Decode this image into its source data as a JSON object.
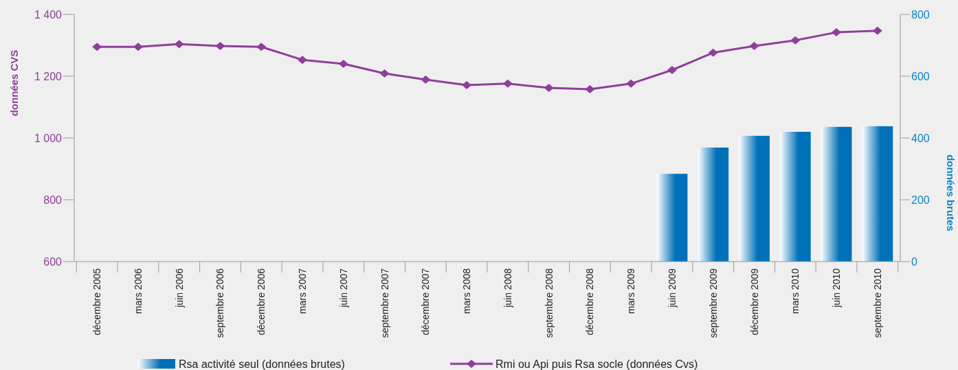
{
  "chart_data": {
    "type": "bar",
    "ylabel": "données CVS",
    "y2label": "données brutes",
    "categories": [
      "décembre 2005",
      "mars 2006",
      "juin 2006",
      "septembre 2006",
      "décembre 2006",
      "mars 2007",
      "juin 2007",
      "septembre 2007",
      "décembre 2007",
      "mars 2008",
      "juin 2008",
      "septembre 2008",
      "décembre 2008",
      "mars 2009",
      "juin 2009",
      "septembre 2009",
      "décembre 2009",
      "mars 2010",
      "juin 2010",
      "septembre 2010"
    ],
    "series": [
      {
        "name": "Rsa activité seul (données brutes)",
        "axis": "y2",
        "color": "#0070b8",
        "values": [
          null,
          null,
          null,
          null,
          null,
          null,
          null,
          null,
          null,
          null,
          null,
          null,
          null,
          null,
          284,
          369,
          407,
          420,
          436,
          438
        ]
      },
      {
        "name": "Rmi ou Api puis Rsa socle (données Cvs)",
        "type": "line",
        "axis": "y",
        "color": "#8e3f9a",
        "marker": "diamond",
        "values": [
          1295,
          1295,
          1304,
          1298,
          1295,
          1253,
          1240,
          1209,
          1189,
          1171,
          1176,
          1162,
          1158,
          1176,
          1220,
          1276,
          1298,
          1316,
          1342,
          1347
        ]
      }
    ],
    "ylim": [
      600,
      1400
    ],
    "yticks": [
      600,
      800,
      {
        "value": 1000,
        "label": "1 000"
      },
      {
        "value": 1200,
        "label": "1 200"
      },
      {
        "value": 1400,
        "label": "1 400"
      }
    ],
    "y2lim": [
      0,
      800
    ],
    "y2ticks": [
      0,
      200,
      400,
      600,
      800
    ],
    "legend": "bottom",
    "grid": false
  }
}
